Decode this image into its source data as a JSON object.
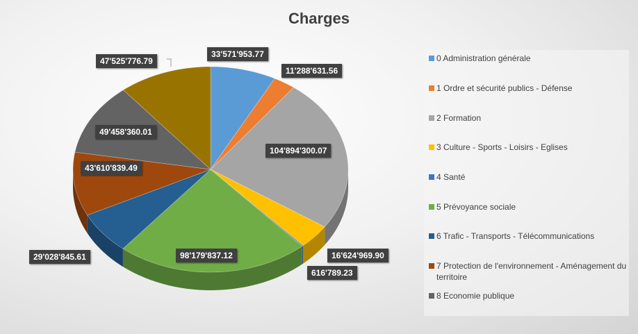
{
  "chart_data": {
    "type": "pie",
    "title": "Charges",
    "style": "3d",
    "categories": [
      "0 Administration générale",
      "1 Ordre et sécurité publics - Défense",
      "2 Formation",
      "3 Culture - Sports - Loisirs - Eglises",
      "4 Santé",
      "5 Prévoyance sociale",
      "6 Trafic - Transports - Télécommunications",
      "7 Protection de l'environnement - Aménagement du territoire",
      "8 Economie publique",
      ""
    ],
    "values": [
      33571953.77,
      11288631.56,
      104894300.07,
      16624969.9,
      616789.23,
      98179837.12,
      29028845.61,
      43610839.49,
      49458360.01,
      47525776.79
    ],
    "data_labels": [
      "33'571'953.77",
      "11'288'631.56",
      "104'894'300.07",
      "16'624'969.90",
      "616'789.23",
      "98'179'837.12",
      "29'028'845.61",
      "43'610'839.49",
      "49'458'360.01",
      "47'525'776.79"
    ],
    "colors": [
      "#5B9BD5",
      "#ED7D31",
      "#A5A5A5",
      "#FFC000",
      "#4472C4",
      "#70AD47",
      "#255E91",
      "#9E480E",
      "#636363",
      "#997300"
    ],
    "legend_position": "right"
  }
}
